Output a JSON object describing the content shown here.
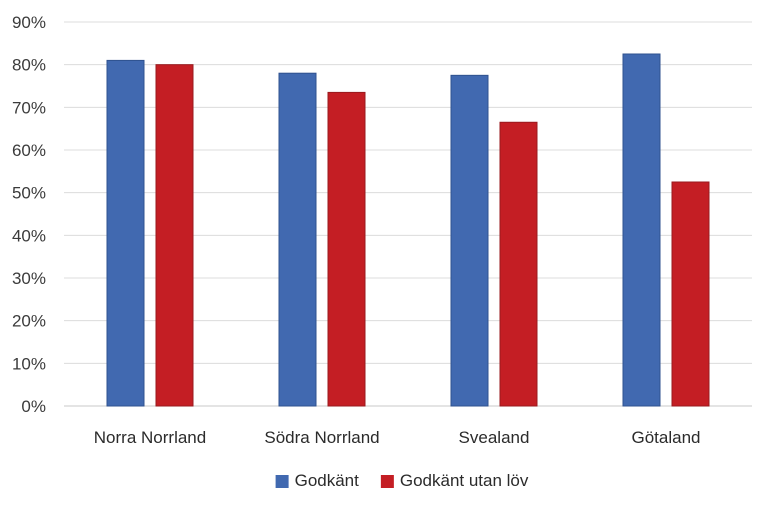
{
  "chart_data": {
    "type": "bar",
    "categories": [
      "Norra Norrland",
      "Södra Norrland",
      "Svealand",
      "Götaland"
    ],
    "series": [
      {
        "name": "Godkänt",
        "values": [
          81,
          78,
          77.5,
          82.5
        ],
        "color": "#4169b0"
      },
      {
        "name": "Godkänt utan löv",
        "values": [
          80,
          73.5,
          66.5,
          52.5
        ],
        "color": "#c41e24"
      }
    ],
    "ylim": [
      0,
      90
    ],
    "yticks": [
      0,
      10,
      20,
      30,
      40,
      50,
      60,
      70,
      80,
      90
    ],
    "ytick_suffix": "%",
    "grid": true,
    "legend_position": "bottom"
  }
}
